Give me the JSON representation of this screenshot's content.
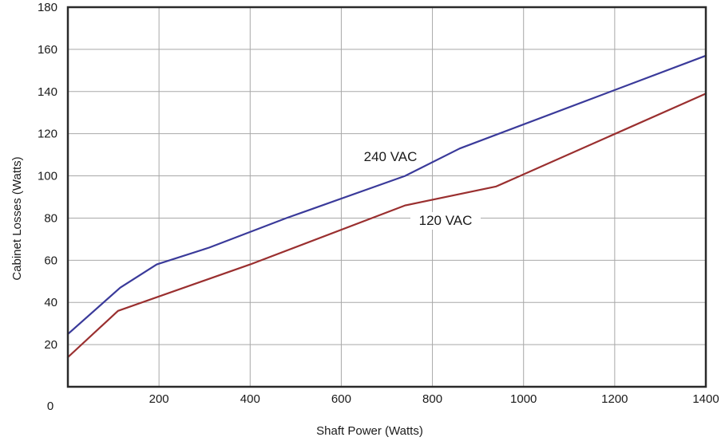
{
  "chart_data": {
    "type": "line",
    "xlabel": "Shaft Power (Watts)",
    "ylabel": "Cabinet Losses (Watts)",
    "xlim": [
      0,
      1400
    ],
    "ylim": [
      0,
      180
    ],
    "grid": true,
    "x_ticks": [
      "0",
      "200",
      "400",
      "600",
      "800",
      "1000",
      "1200",
      "1400"
    ],
    "y_ticks": [
      "20",
      "40",
      "60",
      "80",
      "100",
      "120",
      "140",
      "160",
      "180"
    ],
    "series": [
      {
        "name": "240 VAC",
        "color": "#3a3a9a",
        "points": [
          [
            0,
            25
          ],
          [
            115,
            47
          ],
          [
            195,
            58
          ],
          [
            310,
            66
          ],
          [
            480,
            80
          ],
          [
            740,
            100
          ],
          [
            860,
            113
          ],
          [
            1400,
            157
          ]
        ]
      },
      {
        "name": "120 VAC",
        "color": "#9a2f2f",
        "points": [
          [
            0,
            14
          ],
          [
            110,
            36
          ],
          [
            400,
            58
          ],
          [
            740,
            86
          ],
          [
            940,
            95
          ],
          [
            1400,
            139
          ]
        ]
      }
    ]
  }
}
